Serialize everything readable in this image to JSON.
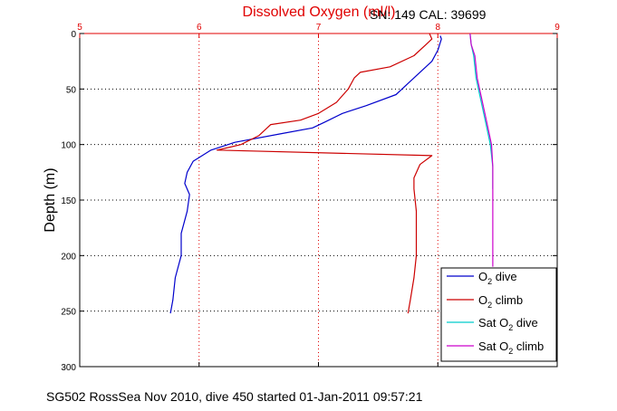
{
  "chart_data": {
    "type": "line",
    "title": "Dissolved Oxygen (ml/l)",
    "annotation": "SN: 149  CAL: 39699",
    "footer": "SG502 RossSea Nov 2010, dive 450 started 01-Jan-2011 09:57:21",
    "xlabel": "",
    "ylabel": "Depth (m)",
    "xlim": [
      5,
      9
    ],
    "ylim": [
      0,
      300
    ],
    "y_reversed": true,
    "grid": true,
    "x_ticks": [
      "5",
      "6",
      "7",
      "8",
      "9"
    ],
    "y_ticks": [
      "0",
      "50",
      "100",
      "150",
      "200",
      "250",
      "300"
    ],
    "legend_position": "bottom-right",
    "series": [
      {
        "name": "O2 dive",
        "legend": {
          "pre": "O",
          "sub": "2",
          "post": " dive"
        },
        "color": "#0000cc",
        "points": [
          [
            8.02,
            2
          ],
          [
            8.03,
            5
          ],
          [
            8.0,
            15
          ],
          [
            7.95,
            25
          ],
          [
            7.85,
            35
          ],
          [
            7.75,
            45
          ],
          [
            7.65,
            55
          ],
          [
            7.4,
            65
          ],
          [
            7.2,
            72
          ],
          [
            7.05,
            80
          ],
          [
            6.95,
            85
          ],
          [
            6.7,
            90
          ],
          [
            6.3,
            98
          ],
          [
            6.1,
            105
          ],
          [
            5.95,
            115
          ],
          [
            5.9,
            125
          ],
          [
            5.88,
            135
          ],
          [
            5.92,
            145
          ],
          [
            5.9,
            160
          ],
          [
            5.85,
            180
          ],
          [
            5.85,
            200
          ],
          [
            5.8,
            220
          ],
          [
            5.78,
            240
          ],
          [
            5.76,
            252
          ]
        ]
      },
      {
        "name": "O2 climb",
        "legend": {
          "pre": "O",
          "sub": "2",
          "post": " climb"
        },
        "color": "#cc0000",
        "points": [
          [
            7.75,
            252
          ],
          [
            7.77,
            240
          ],
          [
            7.8,
            220
          ],
          [
            7.82,
            200
          ],
          [
            7.82,
            180
          ],
          [
            7.82,
            160
          ],
          [
            7.8,
            140
          ],
          [
            7.8,
            130
          ],
          [
            7.85,
            118
          ],
          [
            7.95,
            110
          ],
          [
            6.15,
            105
          ],
          [
            6.35,
            100
          ],
          [
            6.5,
            92
          ],
          [
            6.6,
            82
          ],
          [
            6.85,
            78
          ],
          [
            7.0,
            72
          ],
          [
            7.15,
            62
          ],
          [
            7.25,
            50
          ],
          [
            7.3,
            40
          ],
          [
            7.35,
            35
          ],
          [
            7.6,
            30
          ],
          [
            7.8,
            20
          ],
          [
            7.9,
            10
          ],
          [
            7.95,
            5
          ],
          [
            7.93,
            0
          ]
        ]
      },
      {
        "name": "Sat O2 dive",
        "legend": {
          "pre": "Sat O",
          "sub": "2",
          "post": " dive"
        },
        "color": "#00cccc",
        "points": [
          [
            8.27,
            0
          ],
          [
            8.28,
            10
          ],
          [
            8.3,
            20
          ],
          [
            8.32,
            40
          ],
          [
            8.36,
            60
          ],
          [
            8.4,
            80
          ],
          [
            8.44,
            100
          ],
          [
            8.46,
            120
          ],
          [
            8.46,
            140
          ]
        ]
      },
      {
        "name": "Sat O2 climb",
        "legend": {
          "pre": "Sat O",
          "sub": "2",
          "post": " climb"
        },
        "color": "#cc00cc",
        "points": [
          [
            8.27,
            0
          ],
          [
            8.28,
            10
          ],
          [
            8.31,
            20
          ],
          [
            8.33,
            40
          ],
          [
            8.37,
            60
          ],
          [
            8.41,
            80
          ],
          [
            8.45,
            100
          ],
          [
            8.46,
            120
          ],
          [
            8.46,
            150
          ],
          [
            8.46,
            180
          ],
          [
            8.46,
            210
          ]
        ]
      }
    ]
  }
}
